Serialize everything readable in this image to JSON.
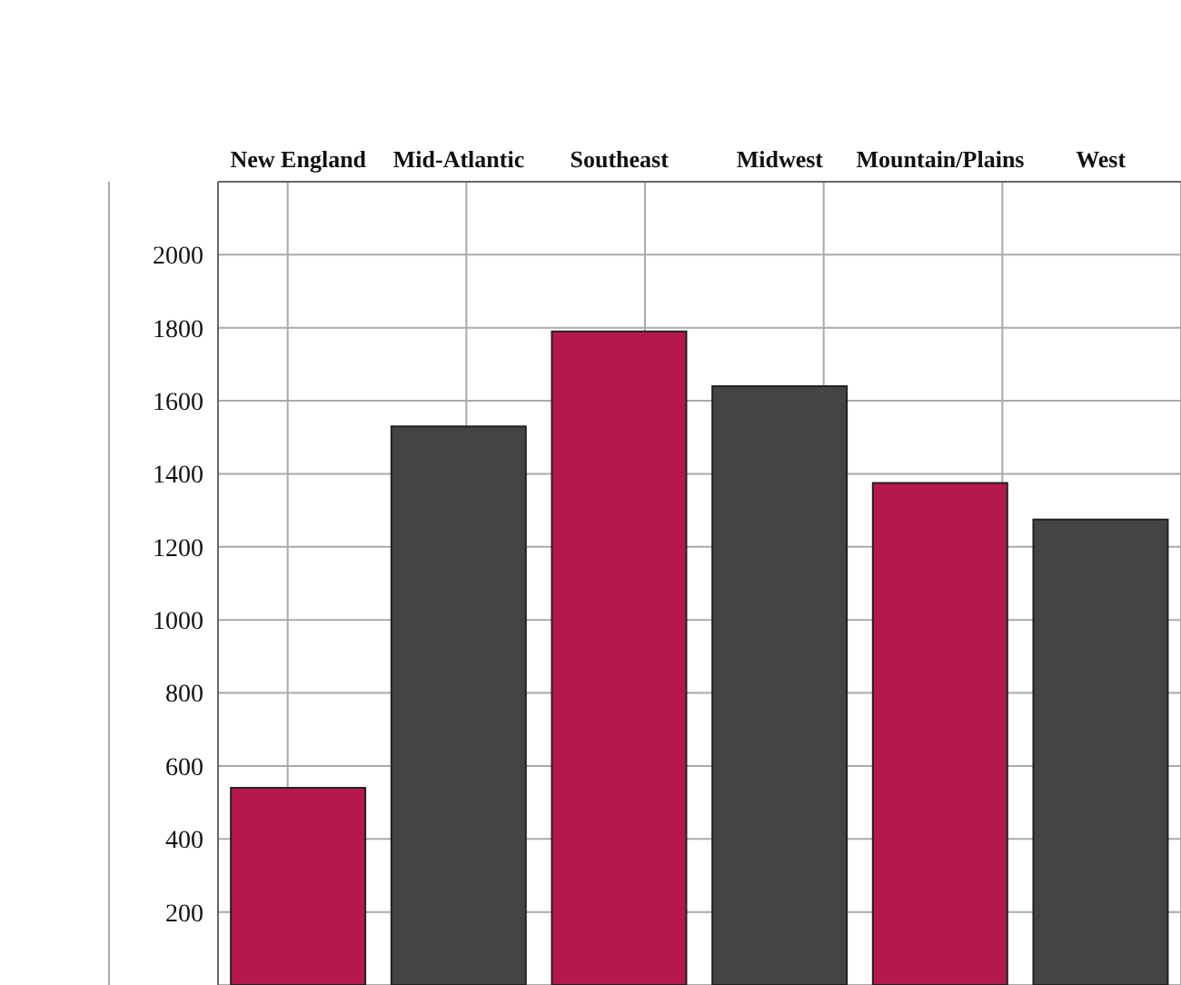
{
  "chart_data": {
    "type": "bar",
    "categories": [
      "New England",
      "Mid-Atlantic",
      "Southeast",
      "Midwest",
      "Mountain/Plains",
      "West"
    ],
    "values": [
      540,
      1530,
      1790,
      1640,
      1375,
      1275
    ],
    "colors": [
      "#b5174f",
      "#444444",
      "#b5174f",
      "#444444",
      "#b5174f",
      "#444444"
    ],
    "ylim": [
      0,
      2200
    ],
    "yticks": [
      200,
      400,
      600,
      800,
      1000,
      1200,
      1400,
      1600,
      1800,
      2000
    ],
    "grid": true
  }
}
